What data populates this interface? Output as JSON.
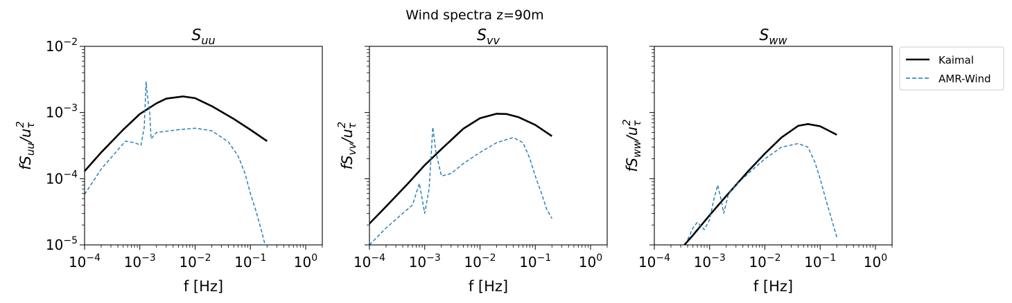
{
  "figure": {
    "suptitle": "Wind spectra z=90m"
  },
  "legend": {
    "placement": "outside-right",
    "entries": [
      {
        "label": "Kaimal",
        "style": "solid",
        "color": "#000000"
      },
      {
        "label": "AMR-Wind",
        "style": "dashed",
        "color": "#1f77b4"
      }
    ]
  },
  "chart_data": [
    {
      "type": "line",
      "title": "S_uu",
      "title_base": "S",
      "title_sub": "uu",
      "xlabel": "f [Hz]",
      "ylabel": "fS_uu/u_τ^2",
      "ylabel_parts": {
        "f": "f",
        "S": "S",
        "sub": "uu",
        "u": "/u",
        "tau": "τ",
        "pow": "2"
      },
      "xscale": "log",
      "yscale": "log",
      "xlim": [
        0.0001,
        2
      ],
      "ylim": [
        1e-05,
        0.01
      ],
      "show_ytick_labels": true,
      "xticks": [
        {
          "value": 0.0001,
          "base": "10",
          "exp": "−4"
        },
        {
          "value": 0.001,
          "base": "10",
          "exp": "−3"
        },
        {
          "value": 0.01,
          "base": "10",
          "exp": "−2"
        },
        {
          "value": 0.1,
          "base": "10",
          "exp": "−1"
        },
        {
          "value": 1,
          "base": "10",
          "exp": "0"
        }
      ],
      "yticks": [
        {
          "value": 1e-05,
          "base": "10",
          "exp": "−5"
        },
        {
          "value": 0.0001,
          "base": "10",
          "exp": "−4"
        },
        {
          "value": 0.001,
          "base": "10",
          "exp": "−3"
        },
        {
          "value": 0.01,
          "base": "10",
          "exp": "−2"
        }
      ],
      "series": [
        {
          "name": "Kaimal",
          "x": [
            0.0001,
            0.0002,
            0.0005,
            0.001,
            0.002,
            0.003,
            0.006,
            0.01,
            0.02,
            0.05,
            0.1,
            0.2
          ],
          "y": [
            0.00013,
            0.00025,
            0.00055,
            0.00095,
            0.00138,
            0.00162,
            0.00175,
            0.00165,
            0.00125,
            0.0008,
            0.00055,
            0.00037
          ]
        },
        {
          "name": "AMR-Wind",
          "x": [
            0.0001,
            0.0002,
            0.00055,
            0.0008,
            0.00105,
            0.0012,
            0.0013,
            0.0014,
            0.0015,
            0.0016,
            0.0018,
            0.002,
            0.003,
            0.005,
            0.01,
            0.02,
            0.04,
            0.06,
            0.08,
            0.1,
            0.13,
            0.16,
            0.19
          ],
          "y": [
            5.8e-05,
            0.00014,
            0.00037,
            0.00035,
            0.00032,
            0.0006,
            0.0029,
            0.0015,
            0.0011,
            0.0004,
            0.00045,
            0.0005,
            0.00052,
            0.00055,
            0.00058,
            0.00053,
            0.00036,
            0.00022,
            0.00012,
            6e-05,
            3e-05,
            1.6e-05,
            9e-06
          ]
        }
      ]
    },
    {
      "type": "line",
      "title": "S_vv",
      "title_base": "S",
      "title_sub": "vv",
      "xlabel": "f [Hz]",
      "ylabel": "fS_vv/u_τ^2",
      "ylabel_parts": {
        "f": "f",
        "S": "S",
        "sub": "vv",
        "u": "/u",
        "tau": "τ",
        "pow": "2"
      },
      "xscale": "log",
      "yscale": "log",
      "xlim": [
        0.0001,
        2
      ],
      "ylim": [
        1e-05,
        0.01
      ],
      "show_ytick_labels": false,
      "xticks": [
        {
          "value": 0.0001,
          "base": "10",
          "exp": "−4"
        },
        {
          "value": 0.001,
          "base": "10",
          "exp": "−3"
        },
        {
          "value": 0.01,
          "base": "10",
          "exp": "−2"
        },
        {
          "value": 0.1,
          "base": "10",
          "exp": "−1"
        },
        {
          "value": 1,
          "base": "10",
          "exp": "0"
        }
      ],
      "yticks": [
        {
          "value": 1e-05,
          "base": "10",
          "exp": "−5"
        },
        {
          "value": 0.0001,
          "base": "10",
          "exp": "−4"
        },
        {
          "value": 0.001,
          "base": "10",
          "exp": "−3"
        },
        {
          "value": 0.01,
          "base": "10",
          "exp": "−2"
        }
      ],
      "series": [
        {
          "name": "Kaimal",
          "x": [
            0.0001,
            0.0002,
            0.0005,
            0.001,
            0.002,
            0.005,
            0.01,
            0.02,
            0.03,
            0.05,
            0.1,
            0.2
          ],
          "y": [
            2.1e-05,
            3.8e-05,
            8.5e-05,
            0.00016,
            0.00028,
            0.00057,
            0.00082,
            0.00096,
            0.00095,
            0.00085,
            0.00065,
            0.00044
          ]
        },
        {
          "name": "AMR-Wind",
          "x": [
            0.0001,
            0.0002,
            0.0004,
            0.0006,
            0.0008,
            0.001,
            0.0012,
            0.0014,
            0.0016,
            0.002,
            0.003,
            0.005,
            0.01,
            0.02,
            0.04,
            0.06,
            0.08,
            0.1,
            0.13,
            0.16,
            0.2
          ],
          "y": [
            1e-05,
            1.8e-05,
            3e-05,
            4e-05,
            8.5e-05,
            3e-05,
            7e-05,
            0.0006,
            0.00025,
            0.00011,
            0.00012,
            0.00017,
            0.00025,
            0.00035,
            0.00042,
            0.00035,
            0.0002,
            0.00011,
            6e-05,
            3.5e-05,
            2.5e-05
          ]
        }
      ]
    },
    {
      "type": "line",
      "title": "S_ww",
      "title_base": "S",
      "title_sub": "ww",
      "xlabel": "f [Hz]",
      "ylabel": "fS_ww/u_τ^2",
      "ylabel_parts": {
        "f": "f",
        "S": "S",
        "sub": "ww",
        "u": "/u",
        "tau": "τ",
        "pow": "2"
      },
      "xscale": "log",
      "yscale": "log",
      "xlim": [
        0.0001,
        2
      ],
      "ylim": [
        1e-05,
        0.01
      ],
      "show_ytick_labels": false,
      "xticks": [
        {
          "value": 0.0001,
          "base": "10",
          "exp": "−4"
        },
        {
          "value": 0.001,
          "base": "10",
          "exp": "−3"
        },
        {
          "value": 0.01,
          "base": "10",
          "exp": "−2"
        },
        {
          "value": 0.1,
          "base": "10",
          "exp": "−1"
        },
        {
          "value": 1,
          "base": "10",
          "exp": "0"
        }
      ],
      "yticks": [
        {
          "value": 1e-05,
          "base": "10",
          "exp": "−5"
        },
        {
          "value": 0.0001,
          "base": "10",
          "exp": "−4"
        },
        {
          "value": 0.001,
          "base": "10",
          "exp": "−3"
        },
        {
          "value": 0.01,
          "base": "10",
          "exp": "−2"
        }
      ],
      "series": [
        {
          "name": "Kaimal",
          "x": [
            0.00035,
            0.0005,
            0.001,
            0.002,
            0.005,
            0.01,
            0.02,
            0.04,
            0.06,
            0.1,
            0.2
          ],
          "y": [
            1e-05,
            1.4e-05,
            2.8e-05,
            5.5e-05,
            0.00013,
            0.00024,
            0.00042,
            0.00063,
            0.00067,
            0.00062,
            0.00046
          ]
        },
        {
          "name": "AMR-Wind",
          "x": [
            0.0004,
            0.0005,
            0.0006,
            0.0008,
            0.001,
            0.0012,
            0.0014,
            0.0016,
            0.0018,
            0.0022,
            0.003,
            0.005,
            0.01,
            0.02,
            0.04,
            0.06,
            0.08,
            0.1,
            0.13,
            0.16,
            0.2
          ],
          "y": [
            1.2e-05,
            1.8e-05,
            2.2e-05,
            1.7e-05,
            2.4e-05,
            5e-05,
            8e-05,
            5e-05,
            3e-05,
            6e-05,
            8e-05,
            0.00012,
            0.0002,
            0.0003,
            0.00034,
            0.0003,
            0.00018,
            0.0001,
            4.5e-05,
            2.5e-05,
            1.3e-05
          ]
        }
      ]
    }
  ]
}
